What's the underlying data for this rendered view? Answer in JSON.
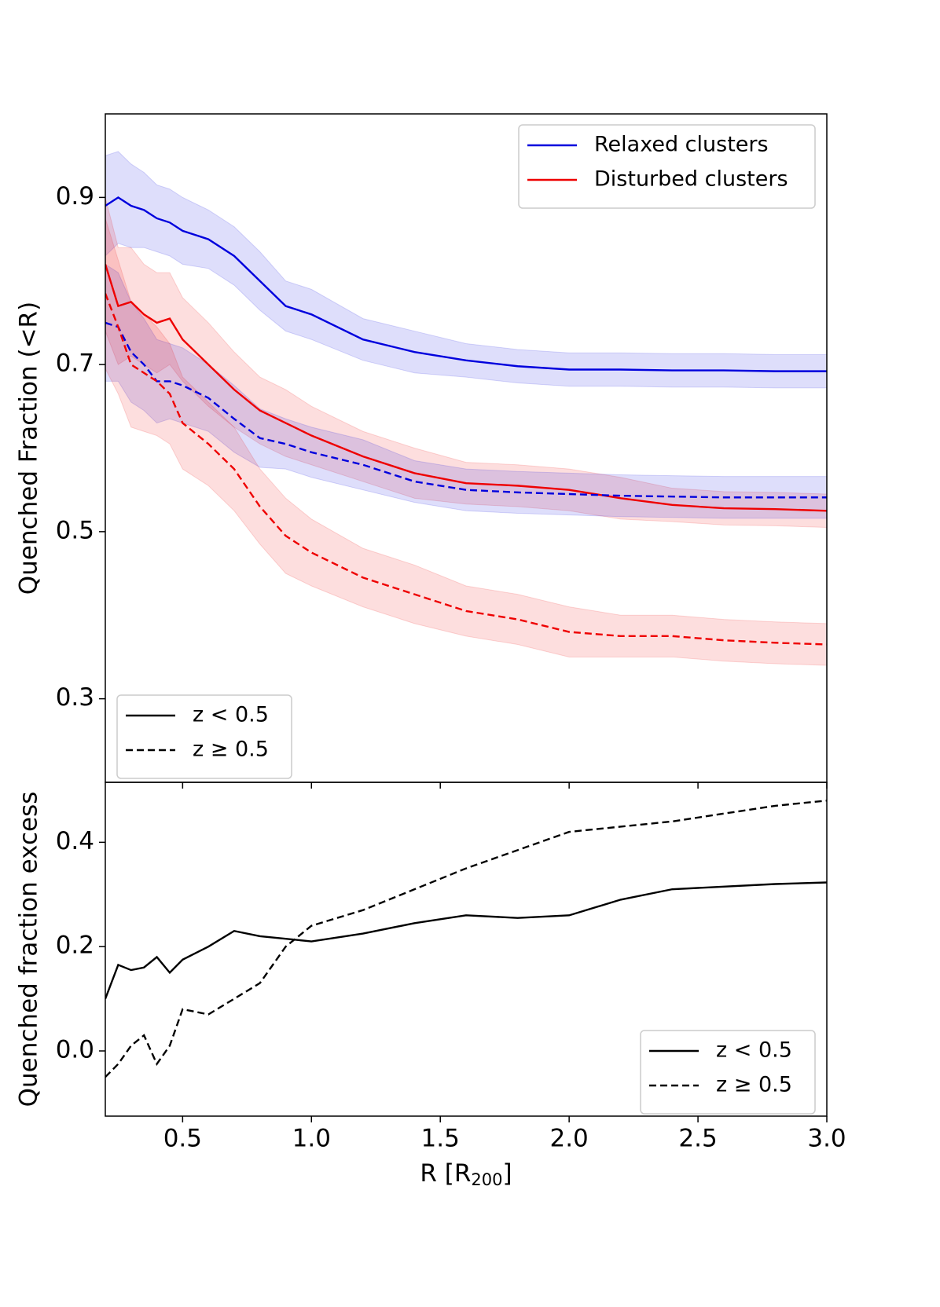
{
  "chart_data": [
    {
      "type": "line",
      "ylabel": "Quenched Fraction (<R)",
      "xlim": [
        0.2,
        3.0
      ],
      "ylim": [
        0.2,
        1.0
      ],
      "yticks": [
        0.3,
        0.5,
        0.7,
        0.9
      ],
      "x": [
        0.2,
        0.25,
        0.3,
        0.35,
        0.4,
        0.45,
        0.5,
        0.6,
        0.7,
        0.8,
        0.9,
        1.0,
        1.2,
        1.4,
        1.6,
        1.8,
        2.0,
        2.2,
        2.4,
        2.6,
        2.8,
        3.0
      ],
      "series": [
        {
          "color": "#0000dd",
          "linestyle": "solid",
          "values": [
            0.89,
            0.9,
            0.89,
            0.885,
            0.875,
            0.87,
            0.86,
            0.85,
            0.83,
            0.8,
            0.77,
            0.76,
            0.73,
            0.715,
            0.705,
            0.698,
            0.694,
            0.694,
            0.693,
            0.693,
            0.692,
            0.692
          ],
          "err": [
            0.06,
            0.055,
            0.05,
            0.045,
            0.04,
            0.04,
            0.04,
            0.035,
            0.035,
            0.035,
            0.03,
            0.03,
            0.025,
            0.025,
            0.02,
            0.02,
            0.02,
            0.02,
            0.02,
            0.02,
            0.02,
            0.02
          ]
        },
        {
          "color": "#ee0000",
          "linestyle": "solid",
          "values": [
            0.82,
            0.77,
            0.775,
            0.76,
            0.75,
            0.755,
            0.73,
            0.7,
            0.67,
            0.645,
            0.63,
            0.615,
            0.59,
            0.57,
            0.558,
            0.555,
            0.55,
            0.54,
            0.532,
            0.528,
            0.527,
            0.525
          ],
          "err": [
            0.08,
            0.07,
            0.065,
            0.06,
            0.06,
            0.055,
            0.05,
            0.05,
            0.045,
            0.04,
            0.04,
            0.035,
            0.03,
            0.03,
            0.025,
            0.025,
            0.025,
            0.025,
            0.02,
            0.02,
            0.02,
            0.02
          ]
        },
        {
          "color": "#0000dd",
          "linestyle": "dashed",
          "values": [
            0.75,
            0.745,
            0.715,
            0.7,
            0.68,
            0.68,
            0.675,
            0.66,
            0.635,
            0.612,
            0.605,
            0.595,
            0.58,
            0.56,
            0.55,
            0.547,
            0.545,
            0.543,
            0.542,
            0.541,
            0.541,
            0.541
          ],
          "err": [
            0.07,
            0.065,
            0.06,
            0.055,
            0.05,
            0.045,
            0.045,
            0.04,
            0.04,
            0.035,
            0.03,
            0.03,
            0.03,
            0.025,
            0.025,
            0.025,
            0.025,
            0.025,
            0.025,
            0.025,
            0.025,
            0.025
          ]
        },
        {
          "color": "#ee0000",
          "linestyle": "dashed",
          "values": [
            0.785,
            0.745,
            0.7,
            0.69,
            0.68,
            0.665,
            0.63,
            0.605,
            0.575,
            0.53,
            0.495,
            0.475,
            0.445,
            0.425,
            0.405,
            0.395,
            0.38,
            0.375,
            0.375,
            0.37,
            0.367,
            0.365
          ],
          "err": [
            0.09,
            0.08,
            0.075,
            0.07,
            0.065,
            0.06,
            0.055,
            0.05,
            0.05,
            0.045,
            0.045,
            0.04,
            0.035,
            0.035,
            0.03,
            0.03,
            0.03,
            0.025,
            0.025,
            0.025,
            0.025,
            0.025
          ]
        }
      ],
      "legend_colors": [
        {
          "name": "Relaxed clusters",
          "color": "#0000dd"
        },
        {
          "name": "Disturbed clusters",
          "color": "#ee0000"
        }
      ],
      "legend_styles": [
        {
          "name": "z < 0.5",
          "linestyle": "solid"
        },
        {
          "name": "z ≥ 0.5",
          "linestyle": "dashed"
        }
      ]
    },
    {
      "type": "line",
      "ylabel": "Quenched fraction excess",
      "xlabel": "R  [R",
      "xlabel_sub": "200",
      "xlabel_end": "]",
      "xlim": [
        0.2,
        3.0
      ],
      "ylim": [
        -0.125,
        0.515
      ],
      "xticks": [
        0.5,
        {
          "value": 1.0,
          "label": "1.0"
        },
        1.5,
        {
          "value": 2.0,
          "label": "2.0"
        },
        2.5,
        {
          "value": 3.0,
          "label": "3.0"
        }
      ],
      "yticks": [
        {
          "value": 0.0,
          "label": "0.0"
        },
        0.2,
        0.4
      ],
      "x": [
        0.2,
        0.25,
        0.3,
        0.35,
        0.4,
        0.45,
        0.5,
        0.6,
        0.7,
        0.8,
        0.9,
        1.0,
        1.2,
        1.4,
        1.6,
        1.8,
        2.0,
        2.2,
        2.4,
        2.6,
        2.8,
        3.0
      ],
      "series": [
        {
          "name": "z < 0.5",
          "color": "#000000",
          "linestyle": "solid",
          "values": [
            0.1,
            0.165,
            0.155,
            0.16,
            0.18,
            0.15,
            0.175,
            0.2,
            0.23,
            0.22,
            0.215,
            0.21,
            0.225,
            0.245,
            0.26,
            0.255,
            0.26,
            0.29,
            0.31,
            0.315,
            0.32,
            0.323
          ]
        },
        {
          "name": "z ≥ 0.5",
          "color": "#000000",
          "linestyle": "dashed",
          "values": [
            -0.05,
            -0.025,
            0.01,
            0.03,
            -0.025,
            0.01,
            0.08,
            0.07,
            0.1,
            0.13,
            0.2,
            0.24,
            0.27,
            0.31,
            0.35,
            0.385,
            0.42,
            0.43,
            0.44,
            0.455,
            0.47,
            0.48
          ]
        }
      ]
    }
  ]
}
